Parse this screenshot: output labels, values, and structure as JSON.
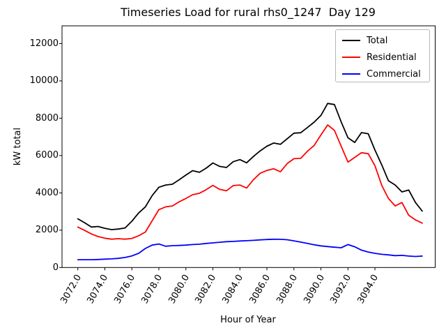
{
  "title": "Timeseries Load for rural rhs0_1247  Day 129",
  "axes": {
    "xlabel": "Hour of Year",
    "ylabel": "kW total",
    "xlim": [
      3070.83,
      3098.46
    ],
    "ylim": [
      0,
      12950
    ],
    "xtick_values": [
      3072,
      3074,
      3076,
      3078,
      3080,
      3082,
      3084,
      3086,
      3088,
      3090,
      3092,
      3094
    ],
    "xtick_labels": [
      "3072.0",
      "3074.0",
      "3076.0",
      "3078.0",
      "3080.0",
      "3082.0",
      "3084.0",
      "3086.0",
      "3088.0",
      "3090.0",
      "3092.0",
      "3094.0"
    ],
    "ytick_values": [
      0,
      2000,
      4000,
      6000,
      8000,
      10000,
      12000
    ],
    "ytick_labels": [
      "0",
      "2000",
      "4000",
      "6000",
      "8000",
      "10000",
      "12000"
    ],
    "axis_color": "#000000",
    "grid": false
  },
  "legend": {
    "position": "upper right",
    "entries": [
      {
        "label": "Total",
        "color": "#000000"
      },
      {
        "label": "Residential",
        "color": "#ff0000"
      },
      {
        "label": "Commercial",
        "color": "#0000ff"
      }
    ]
  },
  "chart_data": {
    "type": "line",
    "title": "Timeseries Load for rural rhs0_1247  Day 129",
    "xlabel": "Hour of Year",
    "ylabel": "kW total",
    "xlim": [
      3070.83,
      3098.46
    ],
    "ylim": [
      0,
      12950
    ],
    "x": [
      3072.0,
      3072.5,
      3073.0,
      3073.5,
      3074.0,
      3074.5,
      3075.0,
      3075.5,
      3076.0,
      3076.5,
      3077.0,
      3077.5,
      3078.0,
      3078.5,
      3079.0,
      3079.5,
      3080.0,
      3080.5,
      3081.0,
      3081.5,
      3082.0,
      3082.5,
      3083.0,
      3083.5,
      3084.0,
      3084.5,
      3085.0,
      3085.5,
      3086.0,
      3086.5,
      3087.0,
      3087.5,
      3088.0,
      3088.5,
      3089.0,
      3089.5,
      3090.0,
      3090.5,
      3091.0,
      3091.5,
      3092.0,
      3092.5,
      3093.0,
      3093.5,
      3094.0,
      3094.5,
      3095.0,
      3095.5,
      3096.0,
      3096.5,
      3097.0,
      3097.5
    ],
    "series": [
      {
        "name": "Total",
        "color": "#000000",
        "values": [
          2610,
          2400,
          2170,
          2200,
          2100,
          2030,
          2060,
          2120,
          2480,
          2920,
          3250,
          3850,
          4300,
          4420,
          4460,
          4700,
          4950,
          5190,
          5100,
          5320,
          5600,
          5420,
          5360,
          5670,
          5780,
          5610,
          5950,
          6250,
          6500,
          6670,
          6600,
          6900,
          7200,
          7220,
          7500,
          7790,
          8150,
          8790,
          8730,
          7800,
          6950,
          6700,
          7230,
          7170,
          6290,
          5500,
          4650,
          4420,
          4050,
          4150,
          3480,
          3020
        ]
      },
      {
        "name": "Residential",
        "color": "#ff0000",
        "values": [
          2170,
          1990,
          1800,
          1660,
          1570,
          1520,
          1545,
          1520,
          1560,
          1700,
          1900,
          2500,
          3100,
          3250,
          3300,
          3520,
          3700,
          3900,
          3980,
          4170,
          4400,
          4190,
          4110,
          4390,
          4420,
          4260,
          4700,
          5050,
          5200,
          5290,
          5130,
          5570,
          5830,
          5850,
          6230,
          6540,
          7100,
          7640,
          7350,
          6500,
          5650,
          5900,
          6150,
          6100,
          5450,
          4400,
          3700,
          3300,
          3480,
          2800,
          2550,
          2380
        ]
      },
      {
        "name": "Commercial",
        "color": "#0000ff",
        "values": [
          420,
          420,
          420,
          430,
          450,
          465,
          490,
          540,
          620,
          760,
          1020,
          1200,
          1260,
          1140,
          1170,
          1180,
          1200,
          1230,
          1250,
          1290,
          1320,
          1355,
          1385,
          1400,
          1420,
          1435,
          1455,
          1480,
          1500,
          1515,
          1510,
          1490,
          1430,
          1360,
          1290,
          1220,
          1160,
          1120,
          1090,
          1060,
          1230,
          1110,
          930,
          830,
          760,
          705,
          675,
          635,
          650,
          615,
          590,
          615
        ]
      }
    ]
  }
}
